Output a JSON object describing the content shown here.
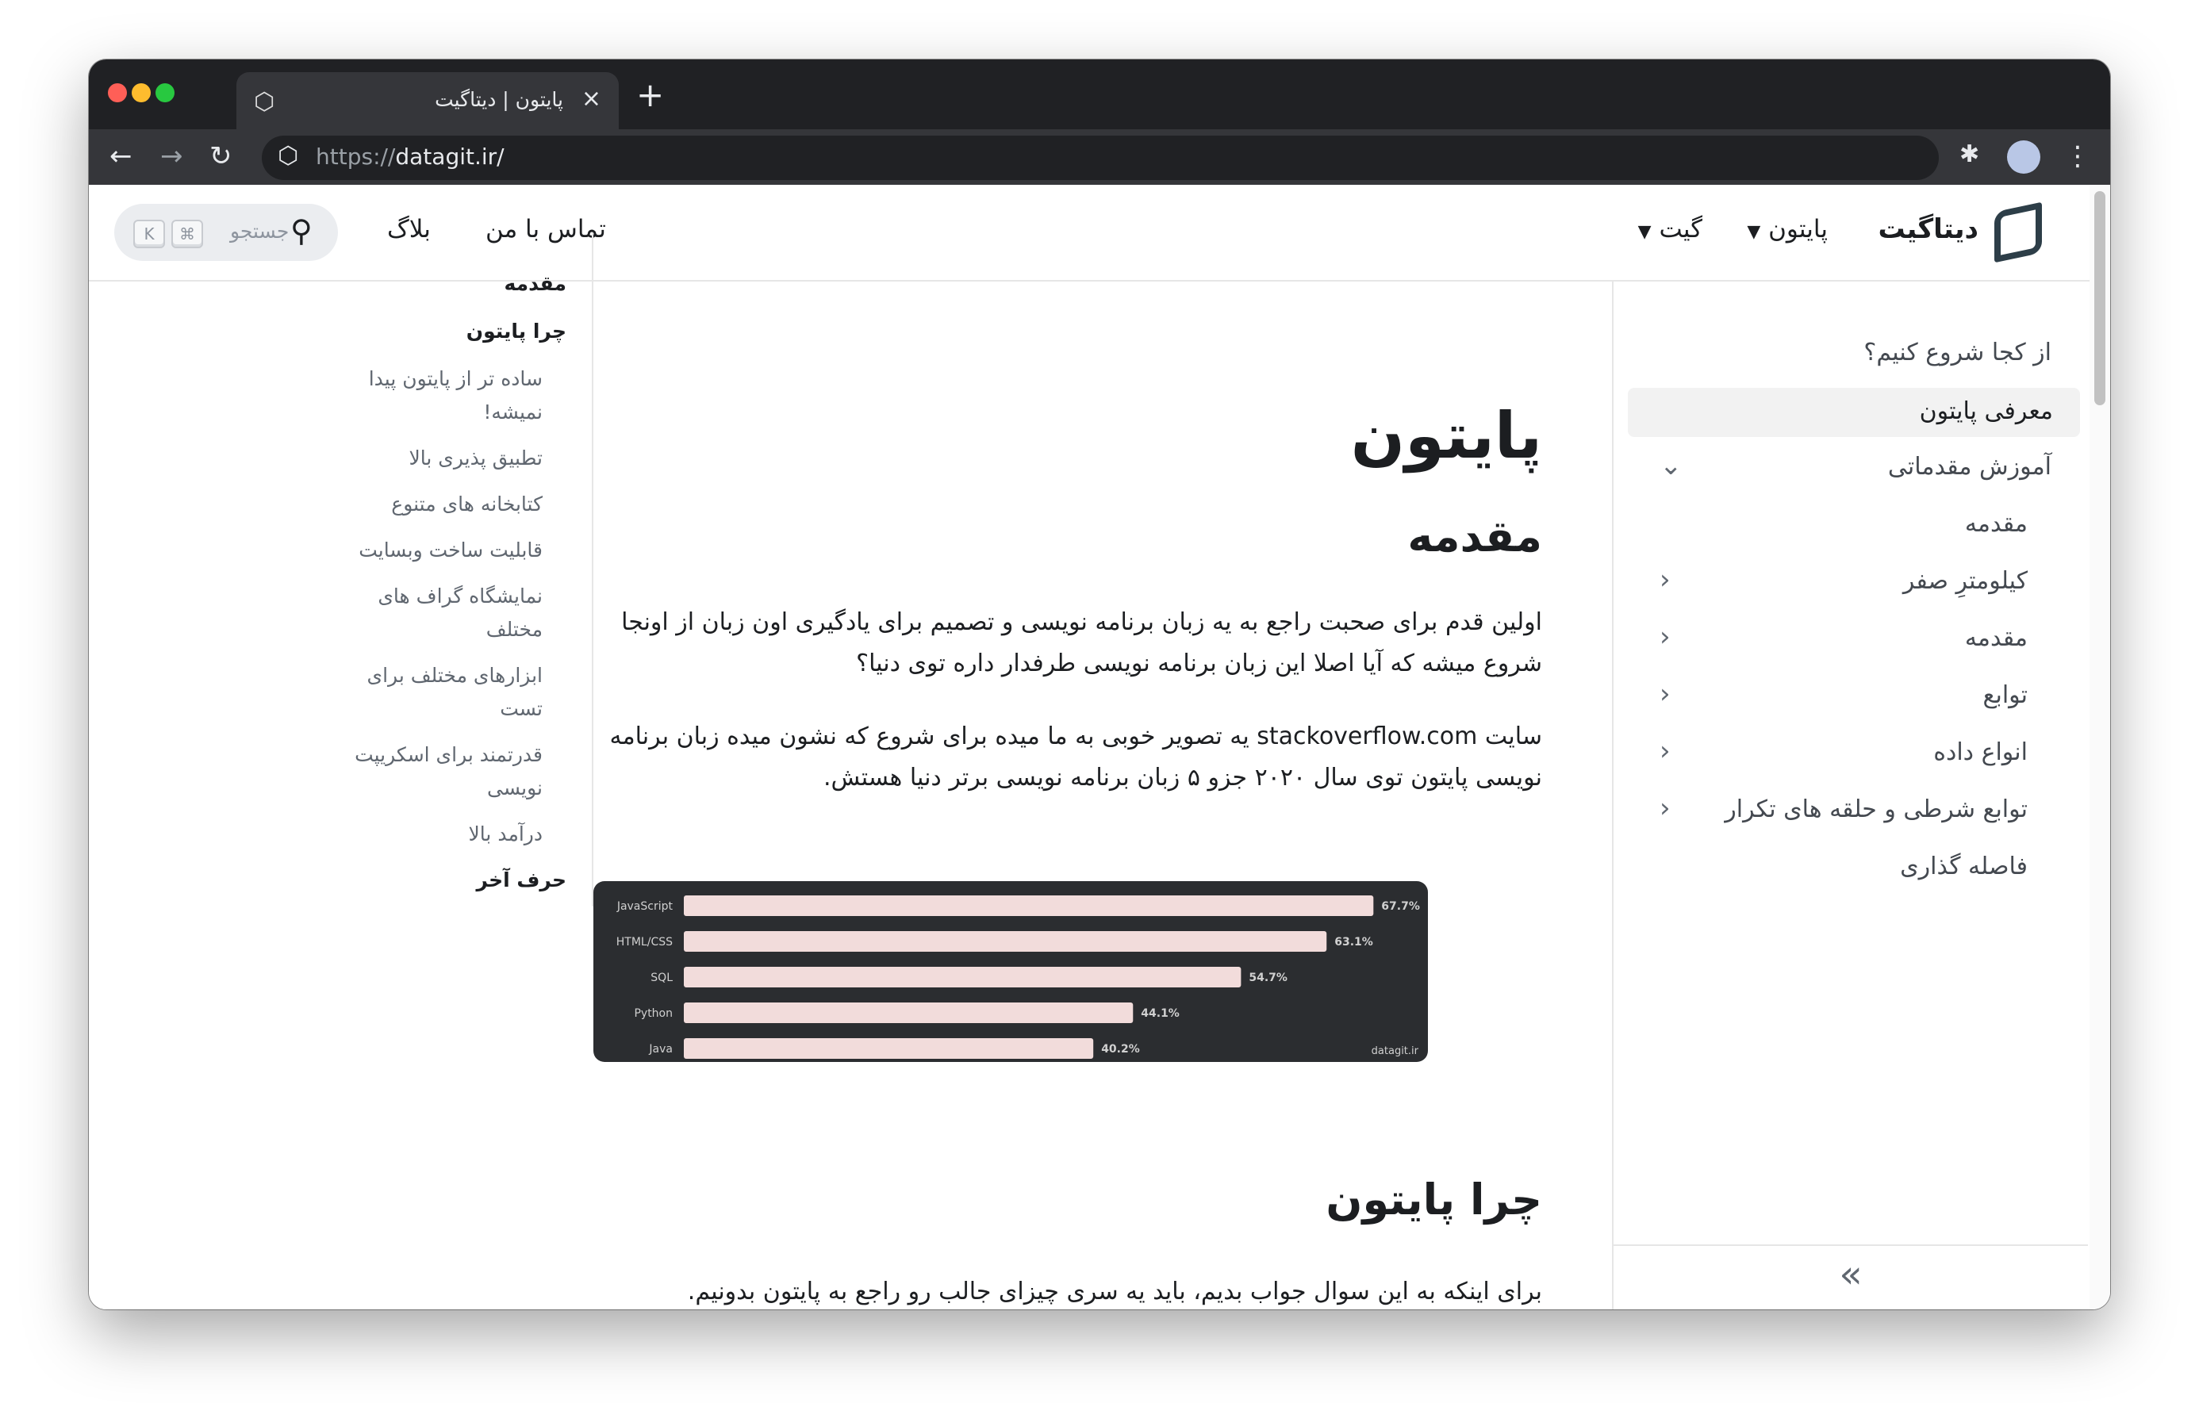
{
  "browser": {
    "tab_title": "پایتون | دیتاگیت",
    "url_proto": "https://",
    "url_host": "datagit.ir/",
    "close": "×",
    "new_tab": "+"
  },
  "header": {
    "brand": "دیتاگیت",
    "nav": [
      "پایتون",
      "گیت",
      "تماس با من",
      "بلاگ"
    ],
    "search_placeholder": "جستجو",
    "kbd": [
      "⌘",
      "K"
    ]
  },
  "sidebar": {
    "items": [
      {
        "label": "از کجا شروع کنیم؟"
      },
      {
        "label": "معرفی پایتون",
        "active": true
      },
      {
        "label": "آموزش مقدماتی",
        "expanded": true
      },
      {
        "label": "مقدمه"
      },
      {
        "label": "کیلومترِ صفر"
      },
      {
        "label": "مقدمه"
      },
      {
        "label": "توابع"
      },
      {
        "label": "انواع داده"
      },
      {
        "label": "توابع شرطی و حلقه های تکرار"
      },
      {
        "label": "فاصله گذاری"
      }
    ],
    "collapse": "»"
  },
  "content": {
    "h1": "پایتون",
    "h2_intro": "مقدمه",
    "p1": "اولین قدم برای صحبت راجع به یه زبان برنامه نویسی و تصمیم برای یادگیری اون زبان از اونجا شروع میشه که آیا اصلا این زبان برنامه نویسی طرفدار داره توی دنیا؟",
    "p2": "سایت stackoverflow.com یه تصویر خوبی به ما میده برای شروع که نشون میده زبان برنامه نویسی پایتون توی سال ۲۰۲۰ جزو ۵ زبان برنامه نویسی برتر دنیا هستش.",
    "h2_why": "چرا پایتون",
    "p3": "برای اینکه به این سوال جواب بدیم، باید یه سری چیزای جالب رو راجع به پایتون بدونیم."
  },
  "toc": [
    "مقدمه",
    "چرا پایتون",
    "ساده تر از پایتون پیدا نمیشه!",
    "تطبیق پذیری بالا",
    "کتابخانه های متنوع",
    "قابلیت ساخت وبسایت",
    "نمایشگاه گراف های مختلف",
    "ابزارهای مختلف برای تست",
    "قدرتمند برای اسکریپت نویسی",
    "درآمد بالا",
    "حرف آخر"
  ],
  "chart_data": {
    "type": "bar",
    "orientation": "horizontal",
    "categories": [
      "JavaScript",
      "HTML/CSS",
      "SQL",
      "Python",
      "Java"
    ],
    "values": [
      67.7,
      63.1,
      54.7,
      44.1,
      40.2
    ],
    "data_labels": [
      "67.7%",
      "63.1%",
      "54.7%",
      "44.1%",
      "40.2%"
    ],
    "watermark": "datagit.ir",
    "colors": {
      "bar": "#f2dcdb",
      "background": "#2b2d30"
    }
  }
}
